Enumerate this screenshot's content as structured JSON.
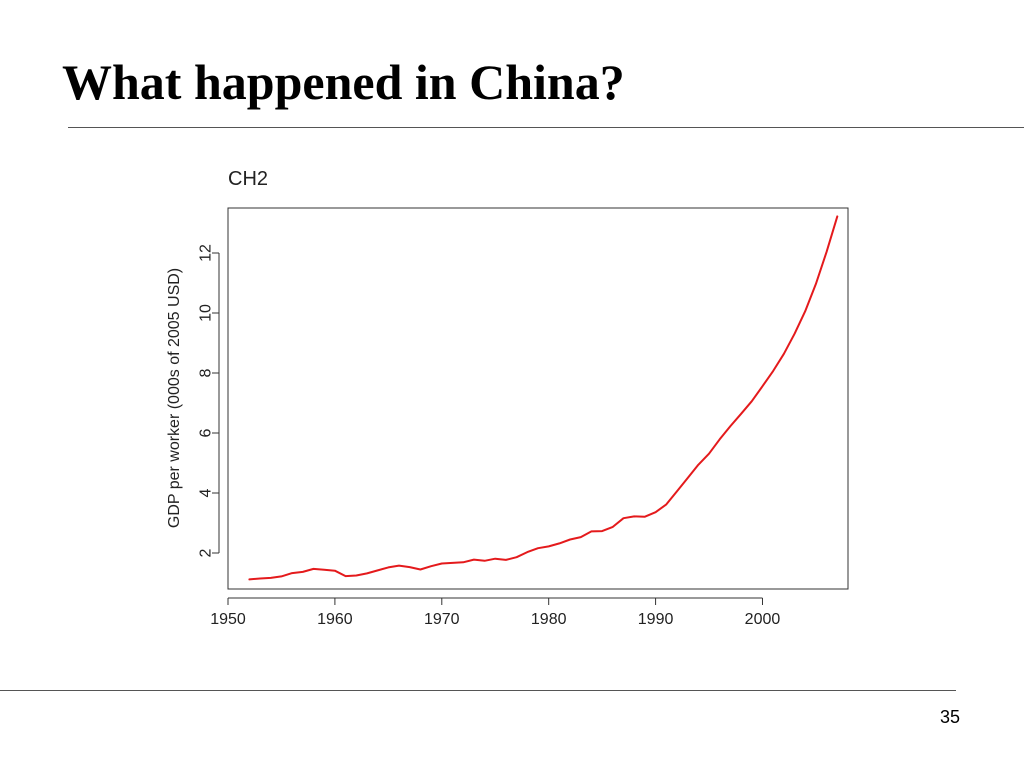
{
  "slide": {
    "title": "What happened in China?",
    "page_number": "35"
  },
  "colors": {
    "series_line": "#e41a1c",
    "axis": "#333333",
    "rule": "#555555"
  },
  "chart_data": {
    "type": "line",
    "title": "CH2",
    "xlabel": "",
    "ylabel": "GDP per worker (000s of 2005 USD)",
    "xlim": [
      1950,
      2008
    ],
    "ylim": [
      0.8,
      13.5
    ],
    "xticks": [
      1950,
      1960,
      1970,
      1980,
      1990,
      2000
    ],
    "yticks": [
      2,
      4,
      6,
      8,
      10,
      12
    ],
    "grid": false,
    "series": [
      {
        "x": [
          1952,
          1953,
          1954,
          1955,
          1956,
          1957,
          1958,
          1959,
          1960,
          1961,
          1962,
          1963,
          1964,
          1965,
          1966,
          1967,
          1968,
          1969,
          1970,
          1971,
          1972,
          1973,
          1974,
          1975,
          1976,
          1977,
          1978,
          1979,
          1980,
          1981,
          1982,
          1983,
          1984,
          1985,
          1986,
          1987,
          1988,
          1989,
          1990,
          1991,
          1992,
          1993,
          1994,
          1995,
          1996,
          1997,
          1998,
          1999,
          2000,
          2001,
          2002,
          2003,
          2004,
          2005,
          2006,
          2007
        ],
        "y": [
          1.12,
          1.15,
          1.17,
          1.22,
          1.33,
          1.37,
          1.47,
          1.44,
          1.41,
          1.23,
          1.25,
          1.32,
          1.42,
          1.52,
          1.58,
          1.53,
          1.45,
          1.56,
          1.65,
          1.67,
          1.69,
          1.78,
          1.74,
          1.81,
          1.77,
          1.86,
          2.03,
          2.16,
          2.22,
          2.32,
          2.45,
          2.53,
          2.72,
          2.73,
          2.87,
          3.16,
          3.22,
          3.21,
          3.36,
          3.62,
          4.06,
          4.5,
          4.94,
          5.31,
          5.79,
          6.23,
          6.64,
          7.06,
          7.56,
          8.07,
          8.64,
          9.31,
          10.06,
          10.97,
          12.04,
          13.22
        ]
      }
    ]
  }
}
